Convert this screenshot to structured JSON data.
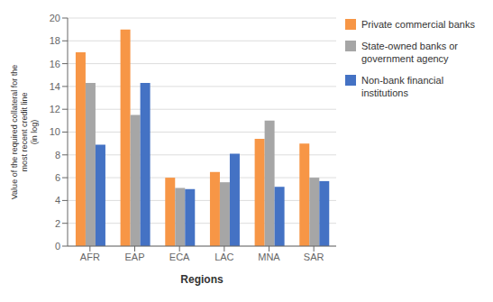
{
  "chart_data": {
    "type": "bar",
    "categories": [
      "AFR",
      "EAP",
      "ECA",
      "LAC",
      "MNA",
      "SAR"
    ],
    "series": [
      {
        "name": "Private commercial banks",
        "color": "#F79646",
        "values": [
          17.0,
          19.0,
          6.0,
          6.5,
          9.4,
          9.0
        ]
      },
      {
        "name": "State-owned banks or\ngovernment agency",
        "color": "#A6A6A6",
        "values": [
          14.3,
          11.5,
          5.1,
          5.6,
          11.0,
          6.0
        ]
      },
      {
        "name": "Non-bank financial\ninstitutions",
        "color": "#4472C4",
        "values": [
          8.9,
          14.3,
          5.0,
          8.1,
          5.2,
          5.7
        ]
      }
    ],
    "xlabel": "Regions",
    "ylabel": "Value of the required collateral for the\nmost recent credit line\n(in log)",
    "ylim": [
      0,
      20
    ],
    "yticks": [
      0,
      2,
      4,
      6,
      8,
      10,
      12,
      14,
      16,
      18,
      20
    ],
    "grid": true,
    "legend": "right"
  }
}
